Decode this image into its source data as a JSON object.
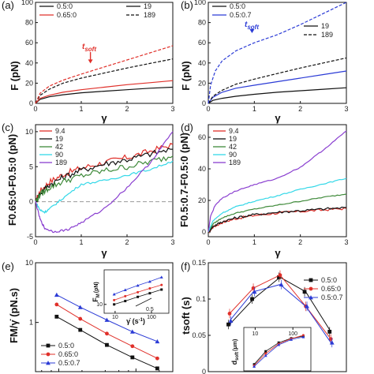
{
  "colors": {
    "black": "#111111",
    "red": "#e0302a",
    "blue": "#2b3bd6",
    "green": "#3f8a3a",
    "cyan": "#34d8e8",
    "purple": "#8a3fd0",
    "gray": "#999999"
  },
  "panels": [
    {
      "label": "(a)",
      "ylabel": "F (pN)",
      "xlabel": "γ"
    },
    {
      "label": "(b)",
      "ylabel": "F (pN)",
      "xlabel": "γ"
    },
    {
      "label": "(c)",
      "ylabel": "F0.65:0-F0.5:0 (pN)",
      "xlabel": "γ"
    },
    {
      "label": "(d)",
      "ylabel": "F0.5:0.7-F0.5:0 (pN)",
      "xlabel": "γ"
    },
    {
      "label": "(e)",
      "ylabel": "FM/γ̇ (pN.s)",
      "xlabel": ""
    },
    {
      "label": "(f)",
      "ylabel": "tsoft (s)",
      "xlabel": ""
    }
  ],
  "annotations": {
    "tsoft": "t",
    "tsoft_sub": "soft",
    "inset_e_ylabel": "F",
    "inset_e_ylabel_sub": "M",
    "inset_e_ylabel_unit": "(pN)",
    "inset_e_xlabel": "γ̇ (s",
    "inset_e_xlabel_sup": "-1",
    "inset_e_xlabel_end": ")",
    "inset_e_slope": "0.5",
    "inset_f_ylabel": "d",
    "inset_f_ylabel_sub": "soft",
    "inset_f_ylabel_unit": "(μm)"
  },
  "legends": {
    "a": {
      "items": [
        "0.5:0",
        "0.65:0"
      ],
      "line_styles": [
        "19",
        "189"
      ]
    },
    "b": {
      "items": [
        "0.5:0",
        "0.5:0.7"
      ],
      "line_styles": [
        "19",
        "189"
      ]
    },
    "c": [
      "9.4",
      "19",
      "42",
      "90",
      "189"
    ],
    "d": [
      "9.4",
      "19",
      "42",
      "90",
      "189"
    ],
    "e": [
      "0.5:0",
      "0.65:0",
      "0.5:0.7"
    ],
    "f": [
      "0.5:0",
      "0.65:0",
      "0.5:0.7"
    ]
  },
  "chart_data": [
    {
      "type": "line",
      "panel": "a",
      "xlim": [
        0,
        3
      ],
      "ylim": [
        0,
        100
      ],
      "xticks": [
        0,
        1,
        2,
        3
      ],
      "yticks": [
        0,
        20,
        40,
        60,
        80,
        100
      ],
      "series": [
        {
          "name": "0.5:0",
          "rate": "19",
          "x": [
            0,
            0.1,
            0.3,
            0.6,
            1.0,
            1.5,
            2.0,
            2.5,
            3.0
          ],
          "y": [
            0,
            4,
            6.5,
            8.5,
            10.5,
            12,
            13.5,
            15,
            16
          ]
        },
        {
          "name": "0.65:0",
          "rate": "19",
          "x": [
            0,
            0.1,
            0.3,
            0.6,
            1.0,
            1.5,
            2.0,
            2.5,
            3.0
          ],
          "y": [
            0,
            5,
            8,
            11,
            13.5,
            16,
            18.5,
            20.5,
            22.5
          ]
        },
        {
          "name": "0.5:0",
          "rate": "189",
          "x": [
            0,
            0.1,
            0.3,
            0.6,
            1.0,
            1.5,
            2.0,
            2.5,
            3.0
          ],
          "y": [
            0,
            8,
            14,
            20,
            25,
            30,
            35,
            39.5,
            44
          ]
        },
        {
          "name": "0.65:0",
          "rate": "189",
          "x": [
            0,
            0.1,
            0.3,
            0.6,
            1.0,
            1.5,
            2.0,
            2.5,
            3.0
          ],
          "y": [
            0,
            10,
            17,
            23,
            29,
            36,
            43,
            50,
            57
          ]
        }
      ],
      "annotation": {
        "x": 1.2,
        "y": 38
      }
    },
    {
      "type": "line",
      "panel": "b",
      "xlim": [
        0,
        3
      ],
      "ylim": [
        0,
        100
      ],
      "xticks": [
        0,
        1,
        2,
        3
      ],
      "yticks": [
        0,
        20,
        40,
        60,
        80,
        100
      ],
      "series": [
        {
          "name": "0.5:0",
          "rate": "19",
          "x": [
            0,
            0.1,
            0.3,
            0.6,
            1.0,
            1.5,
            2.0,
            2.5,
            3.0
          ],
          "y": [
            0,
            3,
            5,
            7,
            9,
            11,
            12.5,
            14,
            15.5
          ]
        },
        {
          "name": "0.5:0.7",
          "rate": "19",
          "x": [
            0,
            0.1,
            0.3,
            0.6,
            1.0,
            1.5,
            2.0,
            2.5,
            3.0
          ],
          "y": [
            0,
            6,
            11,
            15,
            18,
            21.5,
            25,
            28.5,
            32
          ]
        },
        {
          "name": "0.5:0",
          "rate": "189",
          "x": [
            0,
            0.1,
            0.3,
            0.6,
            1.0,
            1.5,
            2.0,
            2.5,
            3.0
          ],
          "y": [
            0,
            7,
            13,
            19,
            24,
            29.5,
            35,
            40,
            45
          ]
        },
        {
          "name": "0.5:0.7",
          "rate": "189",
          "x": [
            0,
            0.05,
            0.15,
            0.3,
            0.6,
            1.0,
            1.5,
            2.0,
            2.5,
            3.0
          ],
          "y": [
            0,
            18,
            32,
            42,
            52,
            60,
            68,
            78,
            89,
            100
          ]
        }
      ],
      "annotation": {
        "x": 0.95,
        "y": 68
      }
    },
    {
      "type": "line",
      "panel": "c",
      "xlim": [
        0,
        3
      ],
      "ylim": [
        -5,
        11
      ],
      "xticks": [
        0,
        1,
        2,
        3
      ],
      "yticks": [
        -5,
        0,
        5,
        10
      ],
      "series": [
        {
          "name": "9.4",
          "x": [
            0,
            0.1,
            0.3,
            0.6,
            1.0,
            1.5,
            2.0,
            2.5,
            3.0
          ],
          "y": [
            0,
            1.5,
            2.8,
            3.9,
            4.8,
            5.6,
            6.3,
            7.2,
            8.2
          ]
        },
        {
          "name": "19",
          "x": [
            0,
            0.1,
            0.3,
            0.6,
            1.0,
            1.5,
            2.0,
            2.5,
            3.0
          ],
          "y": [
            0,
            1.2,
            2.4,
            3.5,
            4.5,
            5.4,
            6.0,
            6.8,
            7.5
          ]
        },
        {
          "name": "42",
          "x": [
            0,
            0.1,
            0.3,
            0.6,
            1.0,
            1.5,
            2.0,
            2.5,
            3.0
          ],
          "y": [
            0,
            1.0,
            2.0,
            2.9,
            3.7,
            4.4,
            5.0,
            5.7,
            6.5
          ]
        },
        {
          "name": "90",
          "x": [
            0,
            0.1,
            0.2,
            0.35,
            0.6,
            1.0,
            1.5,
            2.0,
            2.5,
            3.0
          ],
          "y": [
            0,
            -1.2,
            -1.5,
            -0.8,
            0.5,
            2.5,
            3.0,
            3.8,
            4.6,
            5.8
          ]
        },
        {
          "name": "189",
          "x": [
            0,
            0.1,
            0.2,
            0.4,
            0.7,
            1.0,
            1.5,
            2.0,
            2.5,
            3.0
          ],
          "y": [
            0,
            -2.5,
            -3.8,
            -4.3,
            -4.0,
            -3.0,
            -1.0,
            2.0,
            5.5,
            10.0
          ]
        }
      ],
      "reference_line": 0
    },
    {
      "type": "line",
      "panel": "d",
      "xlim": [
        0,
        3
      ],
      "ylim": [
        -3,
        68
      ],
      "xticks": [
        0,
        1,
        2,
        3
      ],
      "yticks": [
        0,
        20,
        40,
        60
      ],
      "series": [
        {
          "name": "9.4",
          "x": [
            0,
            0.1,
            0.3,
            0.6,
            1.0,
            1.5,
            2.0,
            2.5,
            3.0
          ],
          "y": [
            0,
            3,
            6,
            8.5,
            10.5,
            12,
            13,
            14,
            15
          ]
        },
        {
          "name": "19",
          "x": [
            0,
            0.1,
            0.3,
            0.6,
            1.0,
            1.5,
            2.0,
            2.5,
            3.0
          ],
          "y": [
            0,
            3.5,
            6.5,
            9,
            11,
            12.5,
            13.5,
            14.5,
            15.5
          ]
        },
        {
          "name": "42",
          "x": [
            0,
            0.1,
            0.3,
            0.6,
            1.0,
            1.5,
            2.0,
            2.5,
            3.0
          ],
          "y": [
            0,
            5,
            9,
            12,
            14.5,
            17,
            19.5,
            22,
            24
          ]
        },
        {
          "name": "90",
          "x": [
            0,
            0.1,
            0.3,
            0.6,
            1.0,
            1.5,
            2.0,
            2.5,
            3.0
          ],
          "y": [
            0,
            7,
            12,
            16,
            19.5,
            23,
            27,
            30.5,
            34
          ]
        },
        {
          "name": "189",
          "x": [
            0,
            0.05,
            0.15,
            0.3,
            0.6,
            1.0,
            1.5,
            2.0,
            2.5,
            3.0
          ],
          "y": [
            0,
            10,
            17,
            21.5,
            26,
            30,
            34,
            41,
            52,
            64
          ]
        }
      ],
      "reference_line": 0
    },
    {
      "type": "scatter",
      "panel": "e",
      "log_x": true,
      "log_y": true,
      "xlim": [
        5,
        300
      ],
      "ylim": [
        0.15,
        10
      ],
      "yticks_labeled": [
        1,
        10
      ],
      "series": [
        {
          "name": "0.5:0",
          "x": [
            9.4,
            19,
            42,
            90,
            189
          ],
          "y": [
            1.25,
            0.75,
            0.42,
            0.26,
            0.17
          ]
        },
        {
          "name": "0.65:0",
          "x": [
            9.4,
            19,
            42,
            90,
            189
          ],
          "y": [
            2.0,
            1.15,
            0.65,
            0.4,
            0.25
          ]
        },
        {
          "name": "0.5:0.7",
          "x": [
            9.4,
            19,
            42,
            90,
            189
          ],
          "y": [
            2.9,
            1.8,
            1.1,
            0.7,
            0.48
          ]
        }
      ],
      "inset": {
        "log_x": true,
        "log_y": true,
        "xlim": [
          5,
          300
        ],
        "ylim": [
          5,
          150
        ],
        "xticks_labeled": [
          10,
          100
        ],
        "yticks_labeled": [
          10
        ],
        "series": [
          {
            "name": "0.5:0",
            "x": [
              9.4,
              19,
              42,
              90,
              189
            ],
            "y": [
              10,
              13,
              18,
              24,
              32
            ]
          },
          {
            "name": "0.65:0",
            "x": [
              9.4,
              19,
              42,
              90,
              189
            ],
            "y": [
              14,
              19,
              26,
              35,
              46
            ]
          },
          {
            "name": "0.5:0.7",
            "x": [
              9.4,
              19,
              42,
              90,
              189
            ],
            "y": [
              22,
              31,
              44,
              60,
              84
            ]
          }
        ]
      }
    },
    {
      "type": "scatter",
      "panel": "f",
      "log_x": true,
      "xlim": [
        5,
        300
      ],
      "ylim": [
        0,
        0.15
      ],
      "yticks": [
        0,
        0.05,
        0.1,
        0.15
      ],
      "series": [
        {
          "name": "0.5:0",
          "x": [
            9.4,
            19,
            42,
            90,
            189
          ],
          "y": [
            0.065,
            0.1,
            0.13,
            0.11,
            0.055
          ]
        },
        {
          "name": "0.65:0",
          "x": [
            9.4,
            19,
            42,
            90,
            189
          ],
          "y": [
            0.08,
            0.115,
            0.133,
            0.09,
            0.045
          ]
        },
        {
          "name": "0.5:0.7",
          "x": [
            9.4,
            19,
            42,
            90,
            189
          ],
          "y": [
            0.07,
            0.11,
            0.12,
            0.09,
            0.04
          ]
        }
      ],
      "inset": {
        "log_x": true,
        "xlim": [
          5,
          300
        ],
        "ylim": [
          0,
          1
        ],
        "xticks_labeled": [
          10,
          100
        ],
        "series": [
          {
            "name": "0.5:0",
            "x": [
              9.4,
              19,
              42,
              90,
              189
            ],
            "y": [
              0.15,
              0.45,
              0.65,
              0.75,
              0.8
            ]
          },
          {
            "name": "0.65:0",
            "x": [
              9.4,
              19,
              42,
              90,
              189
            ],
            "y": [
              0.12,
              0.4,
              0.62,
              0.74,
              0.82
            ]
          },
          {
            "name": "0.5:0.7",
            "x": [
              9.4,
              19,
              42,
              90,
              189
            ],
            "y": [
              0.1,
              0.35,
              0.6,
              0.72,
              0.78
            ]
          }
        ]
      }
    }
  ]
}
